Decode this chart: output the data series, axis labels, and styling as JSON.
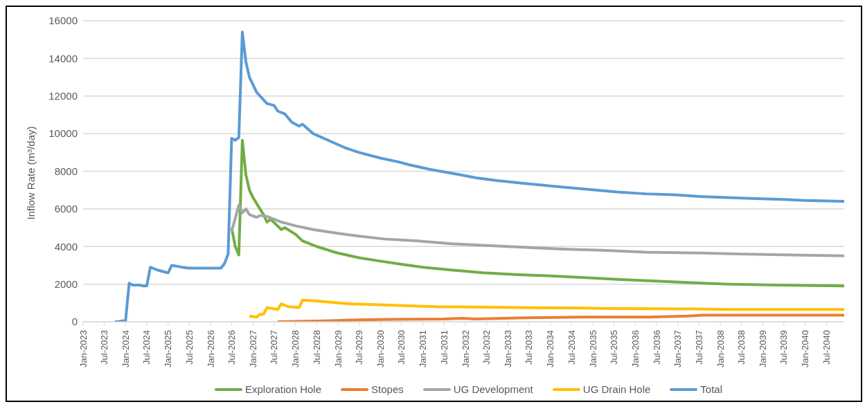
{
  "chart_data": {
    "type": "line",
    "ylabel": "Inflow Rate (m³/day)",
    "xlim": [
      "2023-01",
      "2040-12"
    ],
    "xticks": [
      {
        "value": "2023-01",
        "label": "Jan-2023"
      },
      {
        "value": "2023-07",
        "label": "Jul-2023"
      },
      {
        "value": "2024-01",
        "label": "Jan-2024"
      },
      {
        "value": "2024-07",
        "label": "Jul-2024"
      },
      {
        "value": "2025-01",
        "label": "Jan-2025"
      },
      {
        "value": "2025-07",
        "label": "Jul-2025"
      },
      {
        "value": "2026-01",
        "label": "Jan-2026"
      },
      {
        "value": "2026-07",
        "label": "Jul-2026"
      },
      {
        "value": "2027-01",
        "label": "Jan-2027"
      },
      {
        "value": "2027-07",
        "label": "Jul-2027"
      },
      {
        "value": "2028-01",
        "label": "Jan-2028"
      },
      {
        "value": "2028-07",
        "label": "Jul-2028"
      },
      {
        "value": "2029-01",
        "label": "Jan-2029"
      },
      {
        "value": "2029-07",
        "label": "Jul-2029"
      },
      {
        "value": "2030-01",
        "label": "Jan-2030"
      },
      {
        "value": "2030-07",
        "label": "Jul-2030"
      },
      {
        "value": "2031-01",
        "label": "Jan-2031"
      },
      {
        "value": "2031-07",
        "label": "Jul-2031"
      },
      {
        "value": "2032-01",
        "label": "Jan-2032"
      },
      {
        "value": "2032-07",
        "label": "Jul-2032"
      },
      {
        "value": "2033-01",
        "label": "Jan-2033"
      },
      {
        "value": "2033-07",
        "label": "Jul-2033"
      },
      {
        "value": "2034-01",
        "label": "Jan-2034"
      },
      {
        "value": "2034-07",
        "label": "Jul-2034"
      },
      {
        "value": "2035-01",
        "label": "Jan-2035"
      },
      {
        "value": "2035-07",
        "label": "Jul-2035"
      },
      {
        "value": "2036-01",
        "label": "Jan-2036"
      },
      {
        "value": "2036-07",
        "label": "Jul-2036"
      },
      {
        "value": "2037-01",
        "label": "Jan-2037"
      },
      {
        "value": "2037-07",
        "label": "Jul-2037"
      },
      {
        "value": "2038-01",
        "label": "Jan-2038"
      },
      {
        "value": "2038-07",
        "label": "Jul-2038"
      },
      {
        "value": "2039-01",
        "label": "Jan-2039"
      },
      {
        "value": "2039-07",
        "label": "Jul-2039"
      },
      {
        "value": "2040-01",
        "label": "Jan-2040"
      },
      {
        "value": "2040-07",
        "label": "Jul-2040"
      }
    ],
    "ylim": [
      0,
      16000
    ],
    "yticks": [
      0,
      2000,
      4000,
      6000,
      8000,
      10000,
      12000,
      14000,
      16000
    ],
    "grid": "y",
    "legend": "bottom",
    "marker": "none",
    "line_style": "solid",
    "series": [
      {
        "name": "Exploration Hole",
        "color": "#70ad47",
        "x": [
          "2026-07",
          "2026-08",
          "2026-09",
          "2026-10",
          "2026-11",
          "2026-12",
          "2027-01",
          "2027-03",
          "2027-04",
          "2027-05",
          "2027-06",
          "2027-09",
          "2027-10",
          "2028-01",
          "2028-03",
          "2028-07",
          "2028-12",
          "2029-01",
          "2029-07",
          "2029-12",
          "2030-07",
          "2031-01",
          "2031-09",
          "2031-12",
          "2032-06",
          "2033-04",
          "2033-12",
          "2034-10",
          "2035-08",
          "2036-08",
          "2037-08",
          "2038-03",
          "2039-05",
          "2040-12"
        ],
        "values": [
          5000,
          4000,
          3550,
          9650,
          7800,
          7000,
          6600,
          6000,
          5700,
          5300,
          5450,
          4900,
          5000,
          4650,
          4300,
          4000,
          3700,
          3650,
          3400,
          3250,
          3050,
          2900,
          2750,
          2700,
          2600,
          2500,
          2450,
          2350,
          2250,
          2150,
          2050,
          2000,
          1950,
          1900
        ]
      },
      {
        "name": "Stopes",
        "color": "#ed7d31",
        "x": [
          "2027-08",
          "2028-09",
          "2029-07",
          "2030-05",
          "2031-07",
          "2031-12",
          "2032-04",
          "2033-04",
          "2034-10",
          "2036-05",
          "2037-04",
          "2037-08",
          "2040-12"
        ],
        "values": [
          0,
          50,
          100,
          130,
          150,
          180,
          150,
          200,
          250,
          250,
          300,
          350,
          350
        ]
      },
      {
        "name": "UG Development",
        "color": "#a5a5a5",
        "x": [
          "2026-07",
          "2026-08",
          "2026-09",
          "2026-10",
          "2026-11",
          "2026-12",
          "2027-02",
          "2027-03",
          "2027-05",
          "2027-07",
          "2027-09",
          "2028-01",
          "2028-06",
          "2029-01",
          "2029-07",
          "2030-02",
          "2030-11",
          "2031-09",
          "2032-08",
          "2033-06",
          "2034-06",
          "2035-04",
          "2036-04",
          "2037-08",
          "2038-07",
          "2039-09",
          "2040-12"
        ],
        "values": [
          4800,
          5500,
          6200,
          5800,
          6000,
          5700,
          5550,
          5650,
          5600,
          5450,
          5300,
          5100,
          4900,
          4700,
          4550,
          4400,
          4300,
          4150,
          4050,
          3950,
          3850,
          3800,
          3700,
          3650,
          3600,
          3550,
          3500
        ]
      },
      {
        "name": "UG Drain Hole",
        "color": "#ffc000",
        "x": [
          "2026-12",
          "2027-02",
          "2027-03",
          "2027-04",
          "2027-05",
          "2027-08",
          "2027-09",
          "2027-11",
          "2028-02",
          "2028-03",
          "2028-07",
          "2029-01",
          "2029-05",
          "2030-01",
          "2030-09",
          "2031-05",
          "2032-04",
          "2033-04",
          "2034-10",
          "2035-08",
          "2037-06",
          "2038-03",
          "2040-12"
        ],
        "values": [
          300,
          250,
          400,
          400,
          750,
          650,
          950,
          800,
          750,
          1150,
          1100,
          1000,
          950,
          900,
          850,
          800,
          780,
          750,
          730,
          700,
          680,
          650,
          650
        ]
      },
      {
        "name": "Total",
        "color": "#5b9bd5",
        "x": [
          "2023-10",
          "2023-11",
          "2023-12",
          "2024-01",
          "2024-02",
          "2024-03",
          "2024-05",
          "2024-06",
          "2024-07",
          "2024-08",
          "2024-10",
          "2024-12",
          "2025-01",
          "2025-02",
          "2025-05",
          "2025-07",
          "2026-04",
          "2026-05",
          "2026-06",
          "2026-07",
          "2026-08",
          "2026-09",
          "2026-10",
          "2026-11",
          "2026-12",
          "2027-02",
          "2027-05",
          "2027-07",
          "2027-08",
          "2027-10",
          "2027-12",
          "2028-02",
          "2028-03",
          "2028-06",
          "2028-12",
          "2029-03",
          "2029-07",
          "2030-01",
          "2030-06",
          "2030-09",
          "2031-03",
          "2031-09",
          "2031-12",
          "2032-04",
          "2032-10",
          "2033-06",
          "2034-02",
          "2034-08",
          "2035-02",
          "2035-08",
          "2036-04",
          "2036-12",
          "2037-08",
          "2038-03",
          "2038-11",
          "2039-07",
          "2040-01",
          "2040-12"
        ],
        "values": [
          0,
          0,
          50,
          50,
          2050,
          1950,
          1950,
          1900,
          1900,
          2900,
          2750,
          2650,
          2600,
          3000,
          2900,
          2850,
          2850,
          3100,
          3600,
          9750,
          9650,
          9800,
          15400,
          13800,
          13000,
          12200,
          11600,
          11500,
          11200,
          11050,
          10600,
          10400,
          10500,
          10000,
          9500,
          9250,
          9000,
          8700,
          8500,
          8350,
          8100,
          7900,
          7800,
          7650,
          7500,
          7350,
          7200,
          7100,
          7000,
          6900,
          6800,
          6750,
          6650,
          6600,
          6550,
          6500,
          6450,
          6400
        ]
      }
    ]
  }
}
